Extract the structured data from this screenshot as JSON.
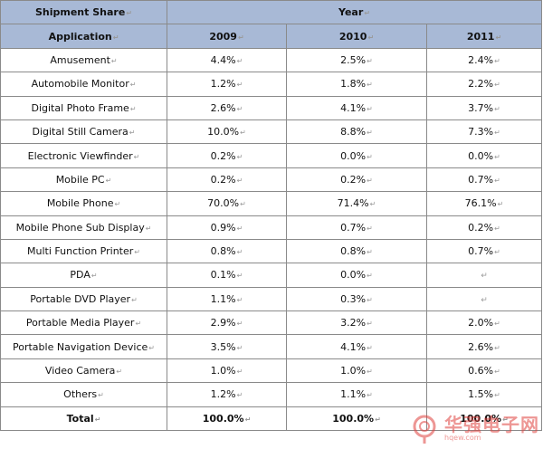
{
  "header": {
    "shipment_share": "Shipment Share",
    "year": "Year",
    "application": "Application",
    "years": [
      "2009",
      "2010",
      "2011"
    ]
  },
  "rows": [
    {
      "app": "Amusement",
      "v": [
        "4.4%",
        "2.5%",
        "2.4%"
      ]
    },
    {
      "app": "Automobile Monitor",
      "v": [
        "1.2%",
        "1.8%",
        "2.2%"
      ]
    },
    {
      "app": "Digital Photo Frame",
      "v": [
        "2.6%",
        "4.1%",
        "3.7%"
      ]
    },
    {
      "app": "Digital Still Camera",
      "v": [
        "10.0%",
        "8.8%",
        "7.3%"
      ]
    },
    {
      "app": "Electronic Viewfinder",
      "v": [
        "0.2%",
        "0.0%",
        "0.0%"
      ]
    },
    {
      "app": "Mobile PC",
      "v": [
        "0.2%",
        "0.2%",
        "0.7%"
      ]
    },
    {
      "app": "Mobile Phone",
      "v": [
        "70.0%",
        "71.4%",
        "76.1%"
      ]
    },
    {
      "app": "Mobile Phone Sub Display",
      "v": [
        "0.9%",
        "0.7%",
        "0.2%"
      ]
    },
    {
      "app": "Multi Function Printer",
      "v": [
        "0.8%",
        "0.8%",
        "0.7%"
      ]
    },
    {
      "app": "PDA",
      "v": [
        "0.1%",
        "0.0%",
        ""
      ]
    },
    {
      "app": "Portable DVD Player",
      "v": [
        "1.1%",
        "0.3%",
        ""
      ]
    },
    {
      "app": "Portable Media Player",
      "v": [
        "2.9%",
        "3.2%",
        "2.0%"
      ]
    },
    {
      "app": "Portable Navigation Device",
      "v": [
        "3.5%",
        "4.1%",
        "2.6%"
      ]
    },
    {
      "app": "Video Camera",
      "v": [
        "1.0%",
        "1.0%",
        "0.6%"
      ]
    },
    {
      "app": "Others",
      "v": [
        "1.2%",
        "1.1%",
        "1.5%"
      ]
    }
  ],
  "total": {
    "label": "Total",
    "v": [
      "100.0%",
      "100.0%",
      "100.0%"
    ]
  },
  "paragraph_mark": "↵",
  "watermark": {
    "text": "华强电子网",
    "url": "hqew.com"
  },
  "colors": {
    "header_bg": "#a8b9d6",
    "border": "#8a8a8a",
    "watermark": "#e0413e"
  }
}
